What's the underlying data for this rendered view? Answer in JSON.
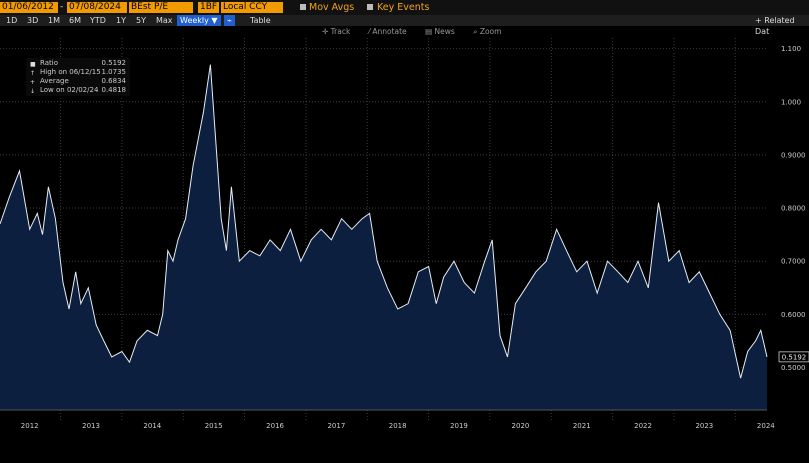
{
  "toolbar": {
    "start_date": "01/06/2012",
    "end_date": "07/08/2024",
    "field": "BEst P/E",
    "field2": "1BF",
    "currency": "Local CCY",
    "mov_avgs": "Mov Avgs",
    "key_events": "Key Events",
    "related": "+ Related Dat",
    "periods": [
      "1D",
      "3D",
      "1M",
      "6M",
      "YTD",
      "1Y",
      "5Y",
      "Max"
    ],
    "frequency": "Weekly ▼",
    "table": "Table",
    "tools": [
      "Track",
      "Annotate",
      "News",
      "Zoom"
    ]
  },
  "legend": {
    "ratio_label": "Ratio",
    "ratio_value": "0.5192",
    "high_label": "High on 06/12/15",
    "high_value": "1.0735",
    "avg_label": "Average",
    "avg_value": "0.6834",
    "low_label": "Low on 02/02/24",
    "low_value": "0.4818"
  },
  "colors": {
    "background": "#000000",
    "area_fill": "#0c1f3f",
    "line": "#e6ecf5",
    "accent": "#f29b00",
    "active_button": "#1f5fd1"
  },
  "chart_data": {
    "type": "area",
    "title": "",
    "xlabel": "",
    "ylabel": "",
    "xlim": [
      "2012-01-06",
      "2024-07-08"
    ],
    "ylim": [
      0.42,
      1.12
    ],
    "yticks": [
      "0.5000",
      "0.6000",
      "0.7000",
      "0.8000",
      "0.9000",
      "1.000",
      "1.100"
    ],
    "xticks": [
      "2012",
      "2013",
      "2014",
      "2015",
      "2016",
      "2017",
      "2018",
      "2019",
      "2020",
      "2021",
      "2022",
      "2023",
      "2024"
    ],
    "last_value_label": "0.5192",
    "grid": true,
    "legend_position": "top-left",
    "series": [
      {
        "name": "Ratio",
        "x": [
          "2012-01-06",
          "2012-03-01",
          "2012-05-01",
          "2012-07-01",
          "2012-08-15",
          "2012-09-15",
          "2012-10-20",
          "2012-12-01",
          "2013-01-15",
          "2013-02-20",
          "2013-04-01",
          "2013-05-01",
          "2013-06-15",
          "2013-08-01",
          "2013-09-15",
          "2013-11-01",
          "2014-01-01",
          "2014-02-15",
          "2014-04-01",
          "2014-06-01",
          "2014-08-01",
          "2014-09-01",
          "2014-10-01",
          "2014-11-01",
          "2014-12-01",
          "2015-01-15",
          "2015-03-01",
          "2015-05-01",
          "2015-06-12",
          "2015-07-15",
          "2015-08-15",
          "2015-09-15",
          "2015-10-15",
          "2015-12-01",
          "2016-02-01",
          "2016-04-01",
          "2016-06-01",
          "2016-08-01",
          "2016-10-01",
          "2016-12-01",
          "2017-02-01",
          "2017-04-01",
          "2017-06-01",
          "2017-08-01",
          "2017-10-01",
          "2017-12-01",
          "2018-01-15",
          "2018-03-01",
          "2018-05-01",
          "2018-07-01",
          "2018-09-01",
          "2018-11-01",
          "2019-01-01",
          "2019-02-15",
          "2019-04-01",
          "2019-06-01",
          "2019-08-01",
          "2019-10-01",
          "2019-12-01",
          "2020-01-15",
          "2020-03-01",
          "2020-04-15",
          "2020-06-01",
          "2020-08-01",
          "2020-10-01",
          "2020-12-01",
          "2021-02-01",
          "2021-04-01",
          "2021-06-01",
          "2021-08-01",
          "2021-10-01",
          "2021-12-01",
          "2022-02-01",
          "2022-04-01",
          "2022-06-01",
          "2022-08-01",
          "2022-10-01",
          "2022-12-01",
          "2023-02-01",
          "2023-04-01",
          "2023-06-01",
          "2023-08-01",
          "2023-10-01",
          "2023-12-01",
          "2024-02-02",
          "2024-03-15",
          "2024-05-01",
          "2024-06-01",
          "2024-07-08"
        ],
        "values": [
          0.77,
          0.82,
          0.87,
          0.76,
          0.79,
          0.75,
          0.84,
          0.78,
          0.66,
          0.61,
          0.68,
          0.62,
          0.65,
          0.58,
          0.55,
          0.52,
          0.53,
          0.51,
          0.55,
          0.57,
          0.56,
          0.6,
          0.72,
          0.7,
          0.74,
          0.78,
          0.88,
          0.98,
          1.07,
          0.92,
          0.78,
          0.72,
          0.84,
          0.7,
          0.72,
          0.71,
          0.74,
          0.72,
          0.76,
          0.7,
          0.74,
          0.76,
          0.74,
          0.78,
          0.76,
          0.78,
          0.79,
          0.7,
          0.65,
          0.61,
          0.62,
          0.68,
          0.69,
          0.62,
          0.67,
          0.7,
          0.66,
          0.64,
          0.7,
          0.74,
          0.56,
          0.52,
          0.62,
          0.65,
          0.68,
          0.7,
          0.76,
          0.72,
          0.68,
          0.7,
          0.64,
          0.7,
          0.68,
          0.66,
          0.7,
          0.65,
          0.81,
          0.7,
          0.72,
          0.66,
          0.68,
          0.64,
          0.6,
          0.57,
          0.48,
          0.53,
          0.55,
          0.57,
          0.52
        ]
      }
    ]
  }
}
